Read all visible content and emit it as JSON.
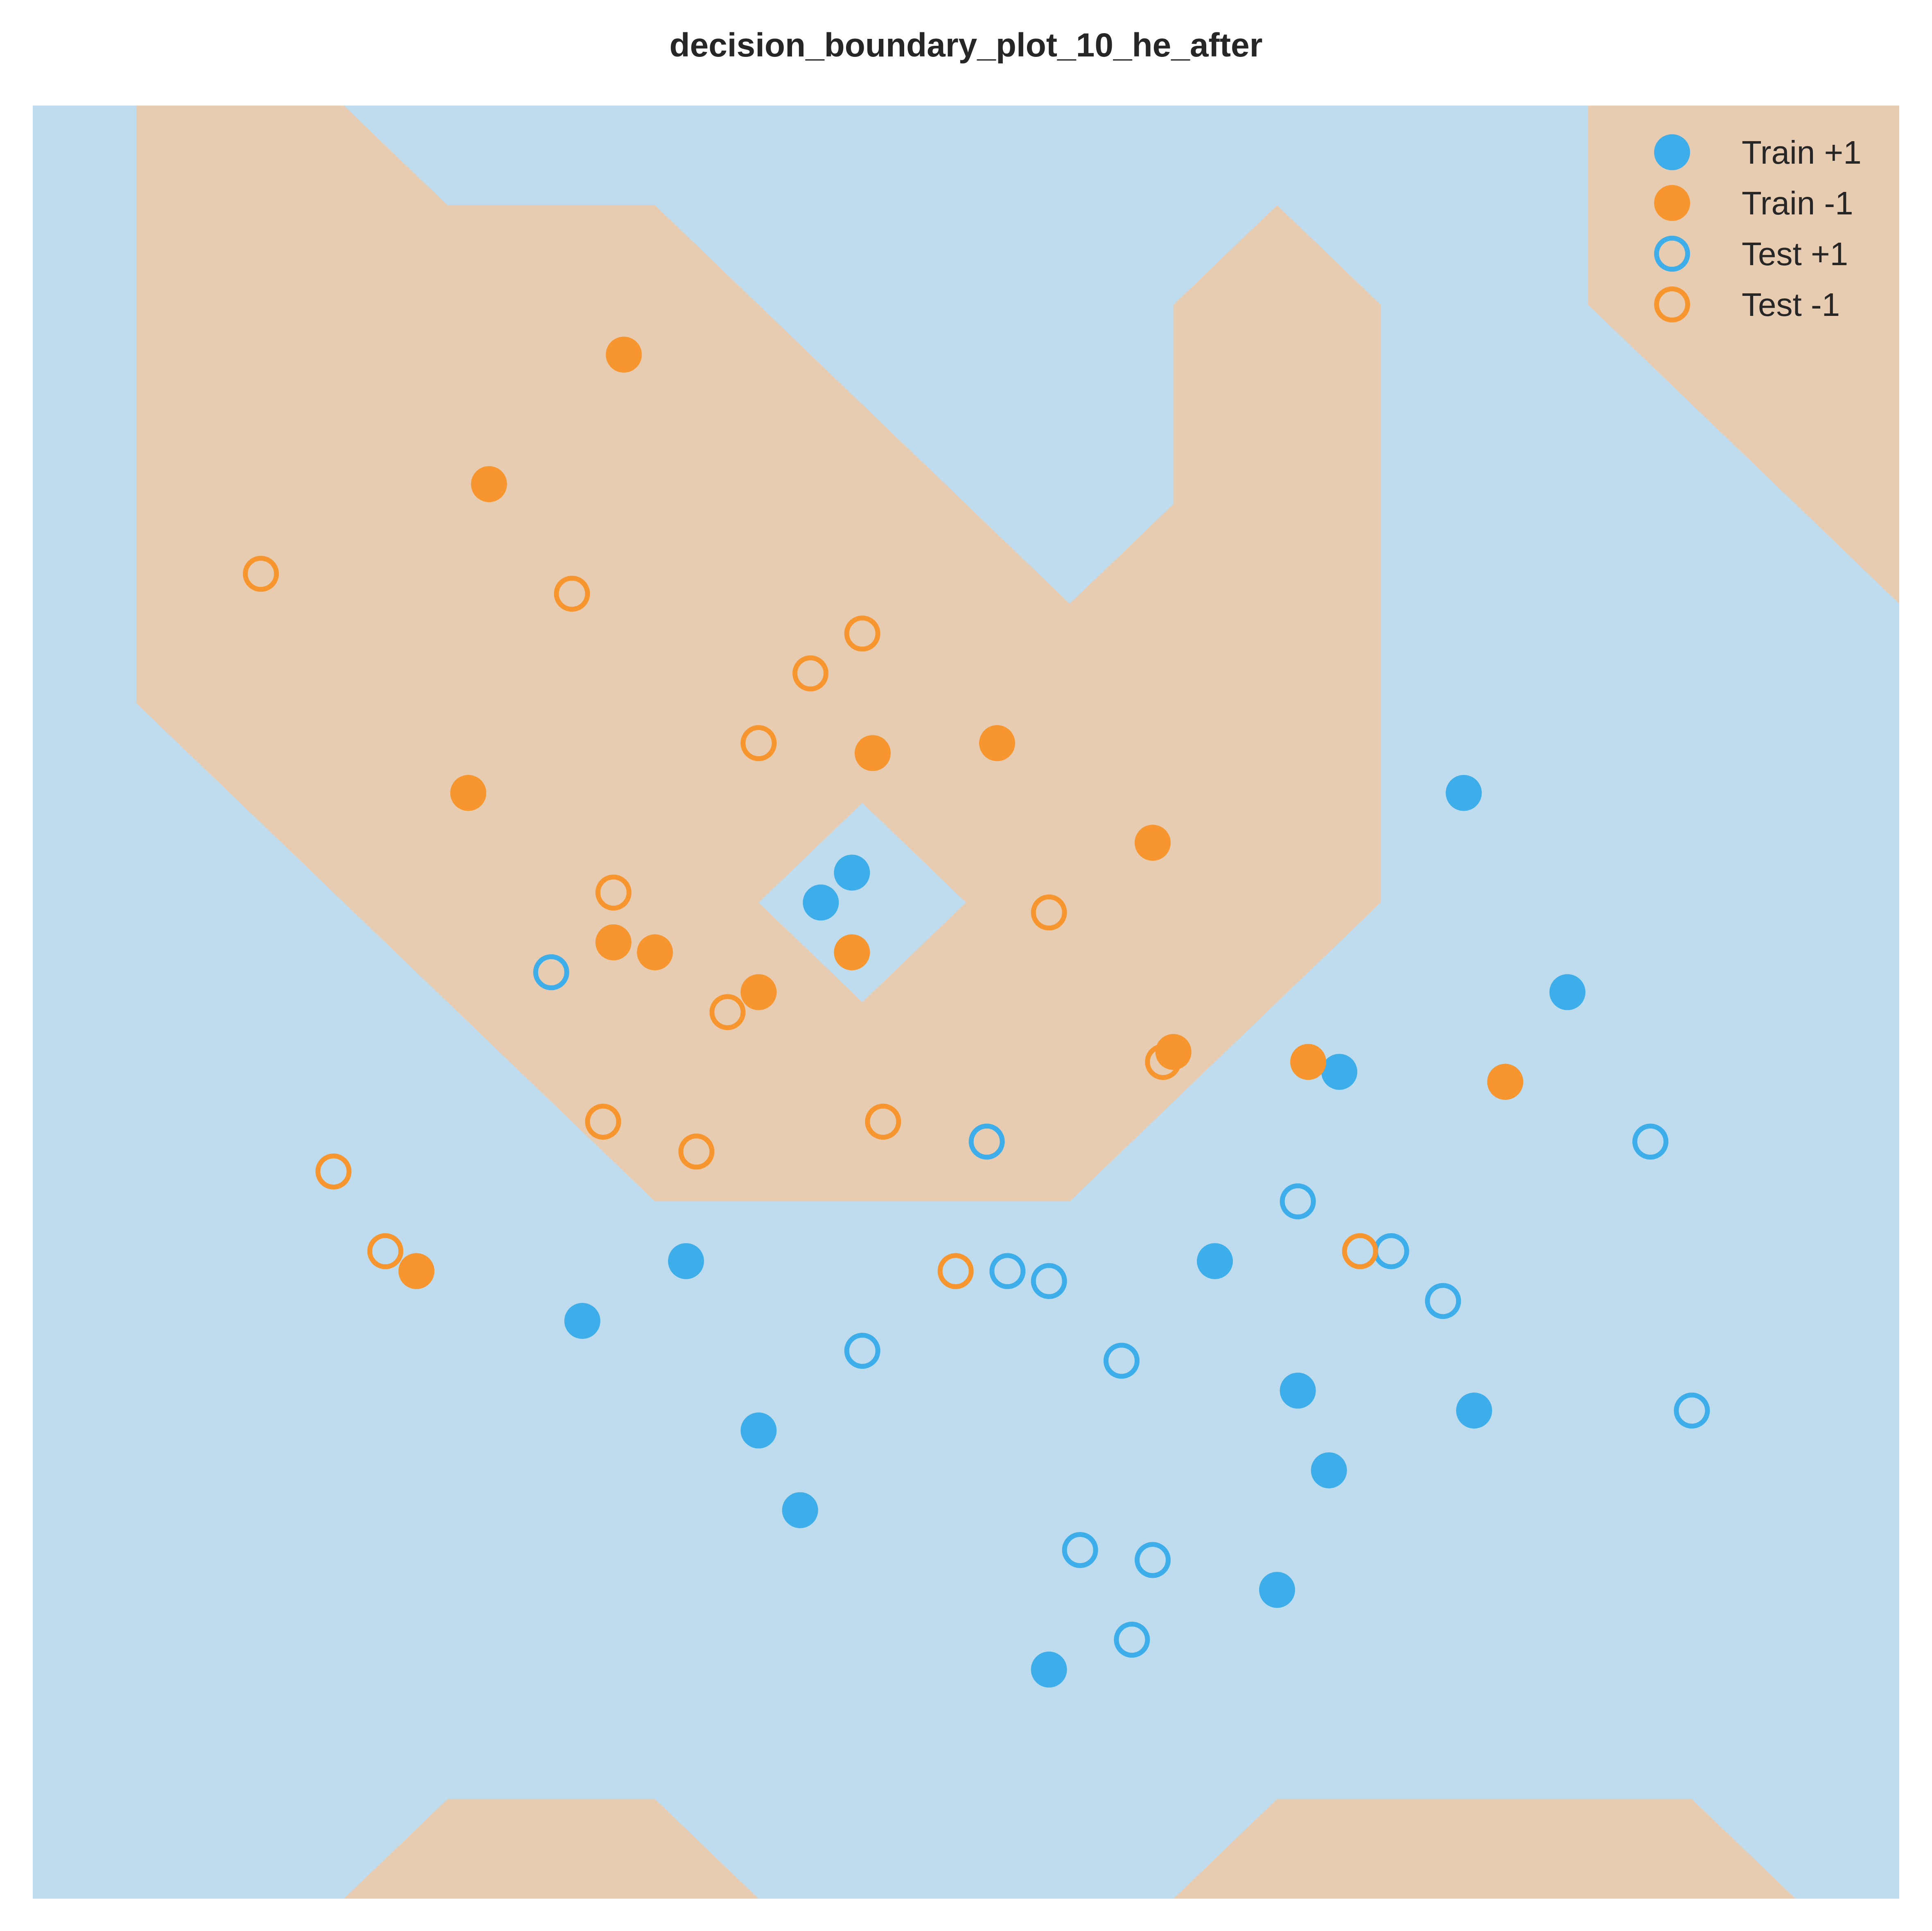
{
  "chart_data": {
    "type": "scatter",
    "title": "decision_boundary_plot_10_he_after",
    "xlabel": "",
    "ylabel": "",
    "xlim": [
      0,
      18
    ],
    "ylim": [
      0,
      18
    ],
    "grid": false,
    "axes_visible": false,
    "legend_position": "top-right",
    "colors": {
      "positive": "#3daee9",
      "negative": "#f7952e",
      "region_positive": "#bedcee",
      "region_negative": "#e8ccb2",
      "title": "#262626"
    },
    "decision_regions": [
      {
        "class": "-1",
        "polygon": [
          [
            1,
            18
          ],
          [
            3,
            18
          ],
          [
            4,
            17
          ],
          [
            6,
            17
          ],
          [
            10,
            13
          ],
          [
            11,
            14
          ],
          [
            11,
            16
          ],
          [
            12,
            17
          ],
          [
            13,
            16
          ],
          [
            13,
            10
          ],
          [
            10,
            7
          ],
          [
            6,
            7
          ],
          [
            1,
            12
          ]
        ]
      },
      {
        "class": "+1",
        "polygon": [
          [
            7,
            10
          ],
          [
            8,
            11
          ],
          [
            9,
            10
          ],
          [
            8,
            9
          ]
        ]
      },
      {
        "class": "-1",
        "polygon": [
          [
            15,
            18
          ],
          [
            18,
            18
          ],
          [
            18,
            13
          ],
          [
            15,
            16
          ]
        ]
      },
      {
        "class": "-1",
        "polygon": [
          [
            3,
            0
          ],
          [
            4,
            1
          ],
          [
            6,
            1
          ],
          [
            7,
            0
          ]
        ]
      },
      {
        "class": "-1",
        "polygon": [
          [
            11,
            0
          ],
          [
            12,
            1
          ],
          [
            16,
            1
          ],
          [
            17,
            0
          ]
        ]
      }
    ],
    "series": [
      {
        "name": "Train +1",
        "label": "+1",
        "marker": "filled",
        "x": [
          13.8,
          7.9,
          7.6,
          14.8,
          12.6,
          14.2,
          6.3,
          5.3,
          11.4,
          7.0,
          12.2,
          13.9,
          12.5,
          7.4,
          12.0,
          9.8
        ],
        "y": [
          11.1,
          10.3,
          10.0,
          9.1,
          8.3,
          8.2,
          6.4,
          5.8,
          6.4,
          4.7,
          5.1,
          4.9,
          4.3,
          3.9,
          3.1,
          2.3
        ]
      },
      {
        "name": "Train -1",
        "label": "-1",
        "marker": "filled",
        "x": [
          5.7,
          4.4,
          8.1,
          9.3,
          4.2,
          10.8,
          5.6,
          6.0,
          7.9,
          7.0,
          11.0,
          12.3,
          14.2,
          3.7
        ],
        "y": [
          15.5,
          14.2,
          11.5,
          11.6,
          11.1,
          10.6,
          9.6,
          9.5,
          9.5,
          9.1,
          8.5,
          8.4,
          8.2,
          6.3
        ]
      },
      {
        "name": "Test +1",
        "label": "+1",
        "marker": "hollow",
        "x": [
          5.0,
          9.2,
          12.2,
          13.1,
          15.6,
          9.4,
          9.8,
          13.6,
          8.0,
          10.5,
          16.0,
          10.1,
          10.8,
          10.6
        ],
        "y": [
          9.3,
          7.6,
          7.0,
          6.5,
          7.6,
          6.3,
          6.2,
          6.0,
          5.5,
          5.4,
          4.9,
          3.5,
          3.4,
          2.6
        ]
      },
      {
        "name": "Test -1",
        "label": "-1",
        "marker": "hollow",
        "x": [
          2.2,
          5.2,
          8.0,
          7.5,
          7.0,
          5.6,
          9.8,
          6.7,
          5.5,
          8.2,
          10.9,
          2.9,
          6.4,
          3.4,
          12.8,
          8.9
        ],
        "y": [
          13.3,
          13.1,
          12.7,
          12.3,
          11.6,
          10.1,
          9.9,
          8.9,
          7.8,
          7.8,
          8.4,
          7.3,
          7.5,
          6.5,
          6.5,
          6.3
        ]
      }
    ]
  }
}
